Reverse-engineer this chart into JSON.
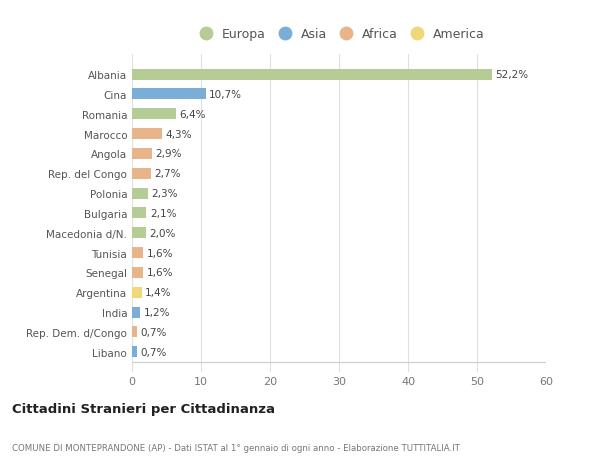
{
  "categories": [
    "Albania",
    "Cina",
    "Romania",
    "Marocco",
    "Angola",
    "Rep. del Congo",
    "Polonia",
    "Bulgaria",
    "Macedonia d/N.",
    "Tunisia",
    "Senegal",
    "Argentina",
    "India",
    "Rep. Dem. d/Congo",
    "Libano"
  ],
  "values": [
    52.2,
    10.7,
    6.4,
    4.3,
    2.9,
    2.7,
    2.3,
    2.1,
    2.0,
    1.6,
    1.6,
    1.4,
    1.2,
    0.7,
    0.7
  ],
  "labels": [
    "52,2%",
    "10,7%",
    "6,4%",
    "4,3%",
    "2,9%",
    "2,7%",
    "2,3%",
    "2,1%",
    "2,0%",
    "1,6%",
    "1,6%",
    "1,4%",
    "1,2%",
    "0,7%",
    "0,7%"
  ],
  "continent": [
    "Europa",
    "Asia",
    "Europa",
    "Africa",
    "Africa",
    "Africa",
    "Europa",
    "Europa",
    "Europa",
    "Africa",
    "Africa",
    "America",
    "Asia",
    "Africa",
    "Asia"
  ],
  "colors": {
    "Europa": "#b5cc96",
    "Asia": "#7aaed6",
    "Africa": "#e8b48a",
    "America": "#f0d878"
  },
  "legend_order": [
    "Europa",
    "Asia",
    "Africa",
    "America"
  ],
  "title": "Cittadini Stranieri per Cittadinanza",
  "subtitle": "COMUNE DI MONTEPRANDONE (AP) - Dati ISTAT al 1° gennaio di ogni anno - Elaborazione TUTTITALIA.IT",
  "xlim": [
    0,
    60
  ],
  "xticks": [
    0,
    10,
    20,
    30,
    40,
    50,
    60
  ],
  "bg_color": "#ffffff",
  "plot_bg_color": "#ffffff",
  "grid_color": "#e0e0e0"
}
